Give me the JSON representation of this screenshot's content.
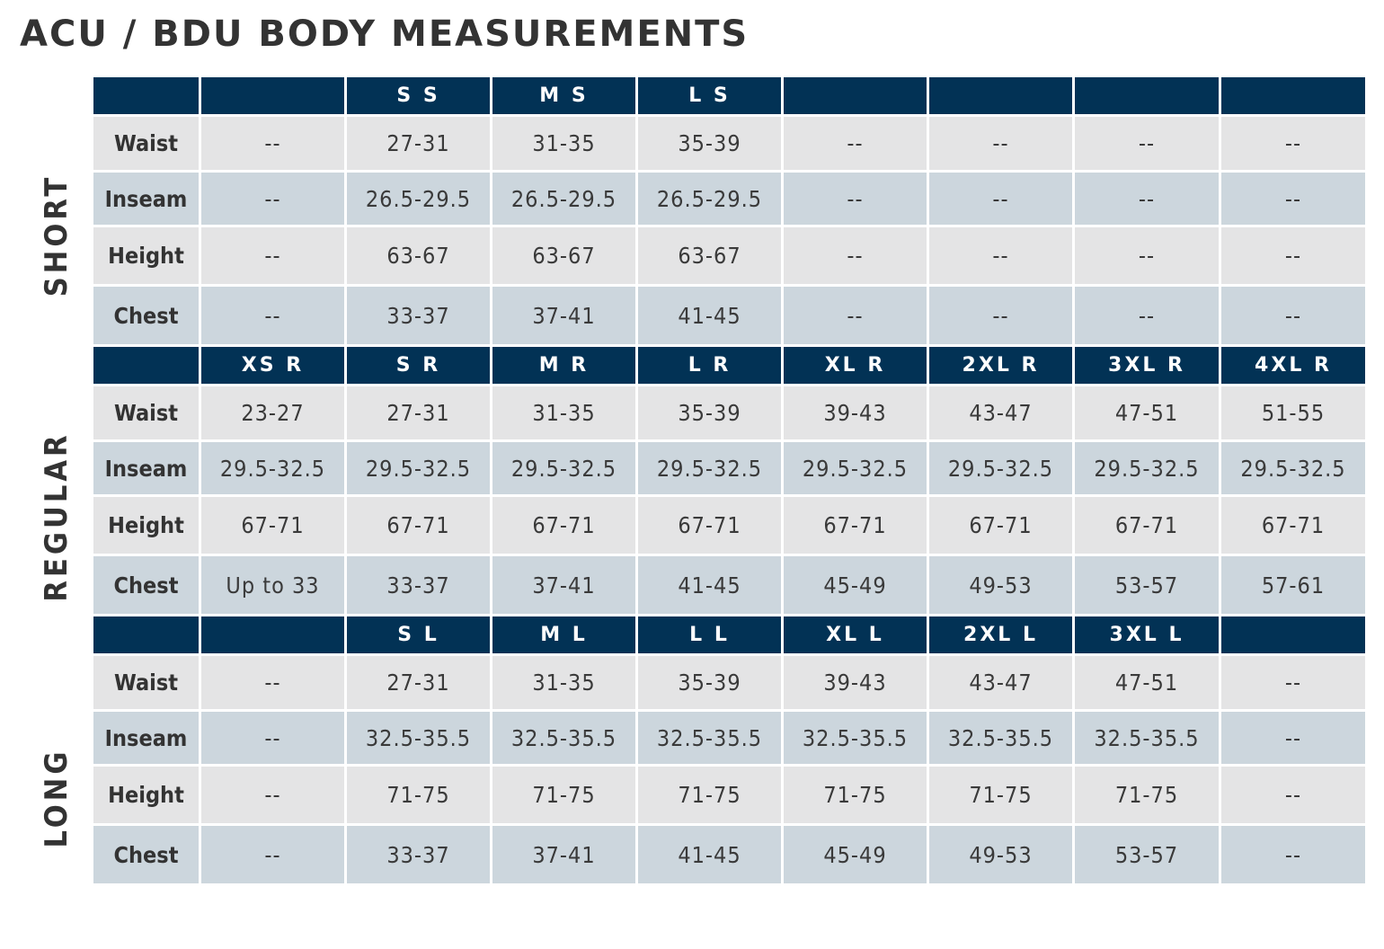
{
  "title": "ACU / BDU BODY MEASUREMENTS",
  "sections": [
    {
      "name": "SHORT",
      "sizes": [
        "",
        "",
        "S S",
        "M S",
        "L S",
        "",
        "",
        "",
        ""
      ],
      "rows": [
        {
          "label": "Waist",
          "values": [
            "--",
            "27-31",
            "31-35",
            "35-39",
            "--",
            "--",
            "--",
            "--"
          ]
        },
        {
          "label": "Inseam",
          "values": [
            "--",
            "26.5-29.5",
            "26.5-29.5",
            "26.5-29.5",
            "--",
            "--",
            "--",
            "--"
          ]
        },
        {
          "label": "Height",
          "values": [
            "--",
            "63-67",
            "63-67",
            "63-67",
            "--",
            "--",
            "--",
            "--"
          ]
        },
        {
          "label": "Chest",
          "values": [
            "--",
            "33-37",
            "37-41",
            "41-45",
            "--",
            "--",
            "--",
            "--"
          ]
        }
      ]
    },
    {
      "name": "REGULAR",
      "sizes": [
        "",
        "XS R",
        "S R",
        "M R",
        "L R",
        "XL R",
        "2XL R",
        "3XL R",
        "4XL R"
      ],
      "rows": [
        {
          "label": "Waist",
          "values": [
            "23-27",
            "27-31",
            "31-35",
            "35-39",
            "39-43",
            "43-47",
            "47-51",
            "51-55"
          ]
        },
        {
          "label": "Inseam",
          "values": [
            "29.5-32.5",
            "29.5-32.5",
            "29.5-32.5",
            "29.5-32.5",
            "29.5-32.5",
            "29.5-32.5",
            "29.5-32.5",
            "29.5-32.5"
          ]
        },
        {
          "label": "Height",
          "values": [
            "67-71",
            "67-71",
            "67-71",
            "67-71",
            "67-71",
            "67-71",
            "67-71",
            "67-71"
          ]
        },
        {
          "label": "Chest",
          "values": [
            "Up to 33",
            "33-37",
            "37-41",
            "41-45",
            "45-49",
            "49-53",
            "53-57",
            "57-61"
          ]
        }
      ]
    },
    {
      "name": "LONG",
      "sizes": [
        "",
        "",
        "S L",
        "M L",
        "L L",
        "XL L",
        "2XL L",
        "3XL L",
        ""
      ],
      "rows": [
        {
          "label": "Waist",
          "values": [
            "--",
            "27-31",
            "31-35",
            "35-39",
            "39-43",
            "43-47",
            "47-51",
            "--"
          ]
        },
        {
          "label": "Inseam",
          "values": [
            "--",
            "32.5-35.5",
            "32.5-35.5",
            "32.5-35.5",
            "32.5-35.5",
            "32.5-35.5",
            "32.5-35.5",
            "--"
          ]
        },
        {
          "label": "Height",
          "values": [
            "--",
            "71-75",
            "71-75",
            "71-75",
            "71-75",
            "71-75",
            "71-75",
            "--"
          ]
        },
        {
          "label": "Chest",
          "values": [
            "--",
            "33-37",
            "37-41",
            "41-45",
            "45-49",
            "49-53",
            "53-57",
            "--"
          ]
        }
      ]
    }
  ],
  "colors": {
    "header_bg": "#023255",
    "header_text": "#ffffff",
    "row_light": "#e4e4e5",
    "row_blue": "#ccd6dd",
    "title_text": "#333333"
  }
}
